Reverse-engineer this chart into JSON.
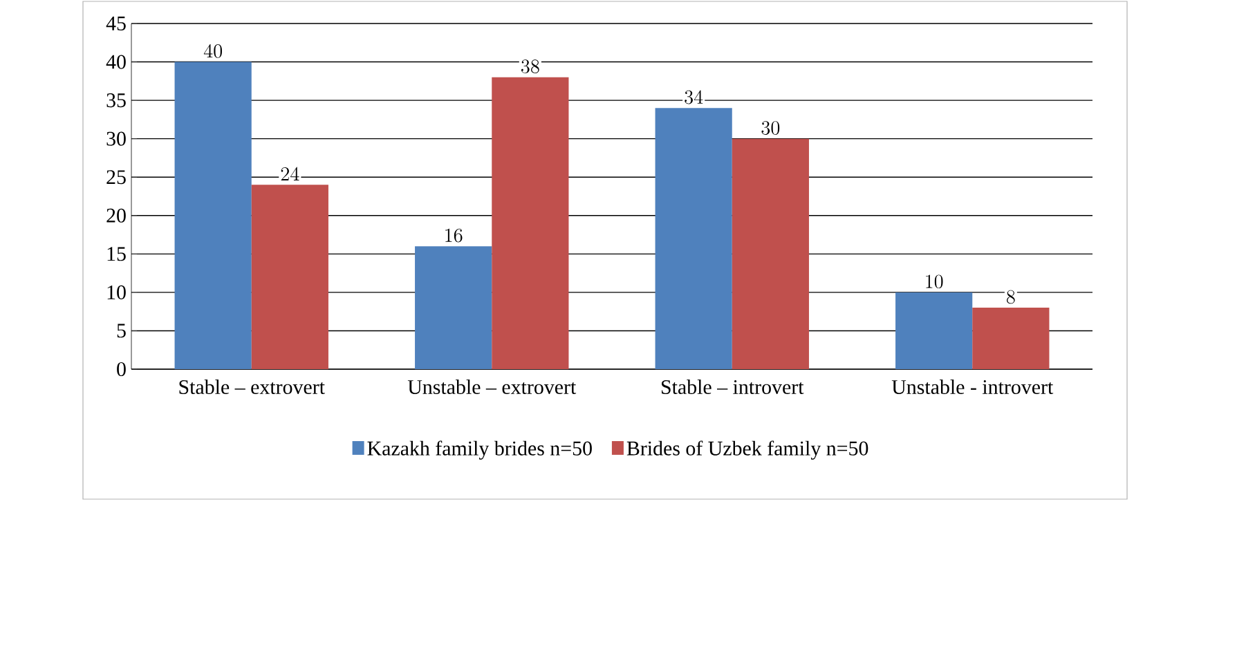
{
  "chart_data": {
    "type": "bar",
    "categories": [
      "Stable – extrovert",
      "Unstable – extrovert",
      "Stable – introvert",
      "Unstable - introvert"
    ],
    "series": [
      {
        "name": "Kazakh family brides n=50",
        "color": "#4f81bd",
        "values": [
          40,
          16,
          34,
          10
        ]
      },
      {
        "name": "Brides of Uzbek family n=50",
        "color": "#c0504d",
        "values": [
          24,
          38,
          30,
          8
        ]
      }
    ],
    "ylim": [
      0,
      45
    ],
    "yticks": [
      0,
      5,
      10,
      15,
      20,
      25,
      30,
      35,
      40,
      45
    ],
    "grid": "y",
    "legend": "bottom",
    "data_labels": true
  }
}
